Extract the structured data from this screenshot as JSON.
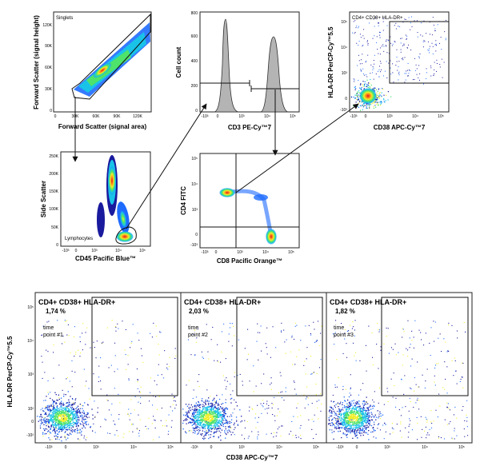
{
  "chart_data": [
    {
      "type": "scatter",
      "plot": "singlets",
      "gate_label": "Singlets",
      "xlabel": "Forward Scatter (signal area)",
      "ylabel": "Forward Scatter (signal height)",
      "x_ticks": [
        "0",
        "30K",
        "60K",
        "90K",
        "120K"
      ],
      "y_ticks": [
        "0",
        "30K",
        "60K",
        "90K",
        "120K"
      ],
      "xlim": [
        0,
        140000
      ],
      "ylim": [
        0,
        140000
      ]
    },
    {
      "type": "scatter",
      "plot": "lymphocytes",
      "gate_label": "Lymphocytes",
      "xlabel": "CD45 Pacific Blue™",
      "ylabel": "Side Scatter",
      "x_ticks": [
        "-10³",
        "0",
        "10³",
        "10⁴",
        "10⁵"
      ],
      "y_ticks": [
        "0",
        "50K",
        "100K",
        "150K",
        "200K",
        "250K"
      ],
      "ylim": [
        0,
        262000
      ]
    },
    {
      "type": "area",
      "plot": "cd3-histogram",
      "xlabel": "CD3 PE-Cy™7",
      "ylabel": "Cell count",
      "x_ticks": [
        "-10³",
        "0",
        "10³",
        "10⁴",
        "10⁵"
      ],
      "y_ticks": [
        "0",
        "200",
        "400",
        "600",
        "800"
      ],
      "ylim": [
        0,
        900
      ]
    },
    {
      "type": "scatter",
      "plot": "cd4-cd8",
      "xlabel": "CD8 Pacific Orange™",
      "ylabel": "CD4 FITC",
      "x_ticks": [
        "-10³",
        "0",
        "10³",
        "10⁴",
        "10⁵"
      ],
      "y_ticks": [
        "-10³",
        "0",
        "10³",
        "10⁴",
        "10⁵"
      ]
    },
    {
      "type": "scatter",
      "plot": "cd38-hladr",
      "gate_label": "CD4+ CD38+ HLA-DR+",
      "xlabel": "CD38 APC-Cy™7",
      "ylabel": "HLA-DR PerCP-Cy™5.5",
      "x_ticks": [
        "-10³",
        "0",
        "10³",
        "10⁴",
        "10⁵"
      ],
      "y_ticks": [
        "-10³",
        "0",
        "10³",
        "10⁴",
        "10⁵"
      ]
    },
    {
      "type": "scatter",
      "plot": "time-series",
      "xlabel": "CD38 APC-Cy™7",
      "ylabel": "HLA-DR PerCP-Cy™5.5",
      "x_ticks": [
        "-10³",
        "0",
        "10³",
        "10⁴",
        "10⁵"
      ],
      "y_ticks": [
        "-10²",
        "0",
        "10²",
        "10³",
        "10⁴",
        "10⁵"
      ],
      "panels": [
        {
          "title": "CD4+ CD38+ HLA-DR+",
          "percent": "1,74 %",
          "time_point": [
            "time",
            "point #1"
          ],
          "value": 1.74
        },
        {
          "title": "CD4+ CD38+ HLA-DR+",
          "percent": "2,03 %",
          "time_point": [
            "time",
            "point #2"
          ],
          "value": 2.03
        },
        {
          "title": "CD4+ CD38+ HLA-DR+",
          "percent": "1,82 %",
          "time_point": [
            "time",
            "point #3"
          ],
          "value": 1.82
        }
      ]
    }
  ],
  "colors": {
    "density": [
      "#1a1a9e",
      "#1e6bff",
      "#19c3e8",
      "#4ee36a",
      "#f1ee2a",
      "#ff8a1a",
      "#e0191a"
    ],
    "histogram_fill": "#b4b4b4",
    "axis": "#222222"
  }
}
